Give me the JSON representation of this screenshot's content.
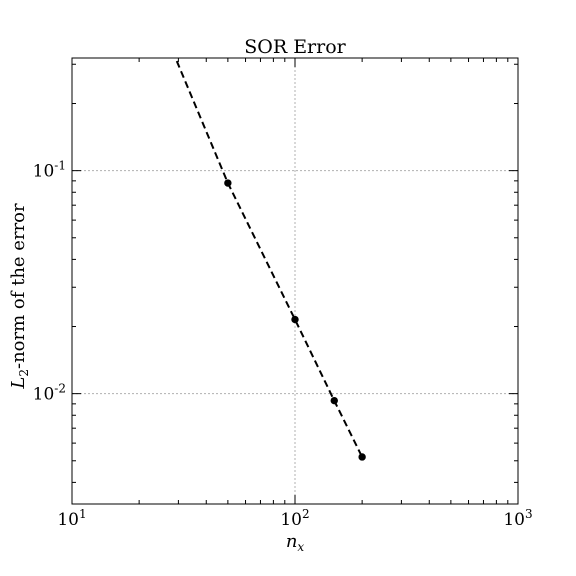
{
  "chart_data": {
    "type": "line",
    "title": "SOR Error",
    "xlabel": {
      "base": "n",
      "sub": "x"
    },
    "ylabel": {
      "base": "L",
      "sub": "2",
      "rest": "-norm of the error"
    },
    "xscale": "log",
    "yscale": "log",
    "xlim": [
      10,
      1000
    ],
    "ylim": [
      0.0032,
      0.32
    ],
    "grid": true,
    "x_ticks": [
      {
        "value": 10,
        "base": "10",
        "exp": "1"
      },
      {
        "value": 100,
        "base": "10",
        "exp": "2"
      },
      {
        "value": 1000,
        "base": "10",
        "exp": "3"
      }
    ],
    "y_ticks": [
      {
        "value": 0.01,
        "base": "10",
        "exp": "-2"
      },
      {
        "value": 0.1,
        "base": "10",
        "exp": "-1"
      }
    ],
    "series": [
      {
        "style": "dashed",
        "color": "#000000",
        "markers": false,
        "points": [
          {
            "x": 29.5,
            "y": 0.31
          },
          {
            "x": 50,
            "y": 0.088
          },
          {
            "x": 100,
            "y": 0.0215
          },
          {
            "x": 150,
            "y": 0.0093
          },
          {
            "x": 200,
            "y": 0.0052
          }
        ]
      },
      {
        "style": "markers",
        "color": "#000000",
        "markers": true,
        "points": [
          {
            "x": 50,
            "y": 0.088
          },
          {
            "x": 100,
            "y": 0.0215
          },
          {
            "x": 150,
            "y": 0.0093
          },
          {
            "x": 200,
            "y": 0.0052
          }
        ]
      }
    ]
  }
}
